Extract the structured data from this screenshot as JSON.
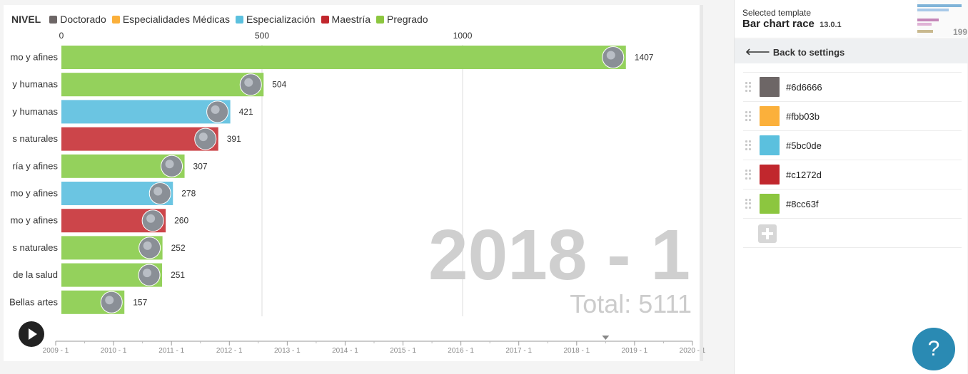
{
  "legend": {
    "title": "NIVEL",
    "items": [
      {
        "label": "Doctorado",
        "color": "#6d6666"
      },
      {
        "label": "Especialidades Médicas",
        "color": "#fbb03b"
      },
      {
        "label": "Especialización",
        "color": "#5bc0de"
      },
      {
        "label": "Maestría",
        "color": "#c1272d"
      },
      {
        "label": "Pregrado",
        "color": "#8cc63f"
      }
    ]
  },
  "chart_data": {
    "type": "bar",
    "orientation": "horizontal",
    "categories": [
      "mo y afines",
      "y humanas",
      "y humanas",
      "s naturales",
      "ría y afines",
      "mo y afines",
      "mo y afines",
      "s naturales",
      " de la salud",
      "Bellas artes"
    ],
    "values": [
      1407,
      504,
      421,
      391,
      307,
      278,
      260,
      252,
      251,
      157
    ],
    "bar_levels": [
      "Pregrado",
      "Pregrado",
      "Especialización",
      "Maestría",
      "Pregrado",
      "Especialización",
      "Maestría",
      "Pregrado",
      "Pregrado",
      "Pregrado"
    ],
    "bar_colors": [
      "#94d15c",
      "#94d15c",
      "#6bc5e2",
      "#cc454a",
      "#94d15c",
      "#6bc5e2",
      "#cc454a",
      "#94d15c",
      "#94d15c",
      "#94d15c"
    ],
    "xlim": [
      0,
      1580
    ],
    "xticks": [
      0,
      500,
      1000
    ],
    "grid": true,
    "period_label": "2018 - 1",
    "total_label": "Total: 5111",
    "timeline": {
      "ticks": [
        "2009 - 1",
        "2010 - 1",
        "2011 - 1",
        "2012 - 1",
        "2013 - 1",
        "2014 - 1",
        "2015 - 1",
        "2016 - 1",
        "2017 - 1",
        "2018 - 1",
        "2019 - 1",
        "2020 - 1"
      ],
      "current_position": 9.5
    }
  },
  "controls": {
    "play_icon": "play-icon"
  },
  "sidebar": {
    "template_label": "Selected template",
    "template_name": "Bar chart race",
    "template_version": "13.0.1",
    "thumb_number": "199",
    "back_label": "Back to settings",
    "colors": [
      "#6d6666",
      "#fbb03b",
      "#5bc0de",
      "#c1272d",
      "#8cc63f"
    ]
  },
  "help": {
    "label": "?"
  }
}
